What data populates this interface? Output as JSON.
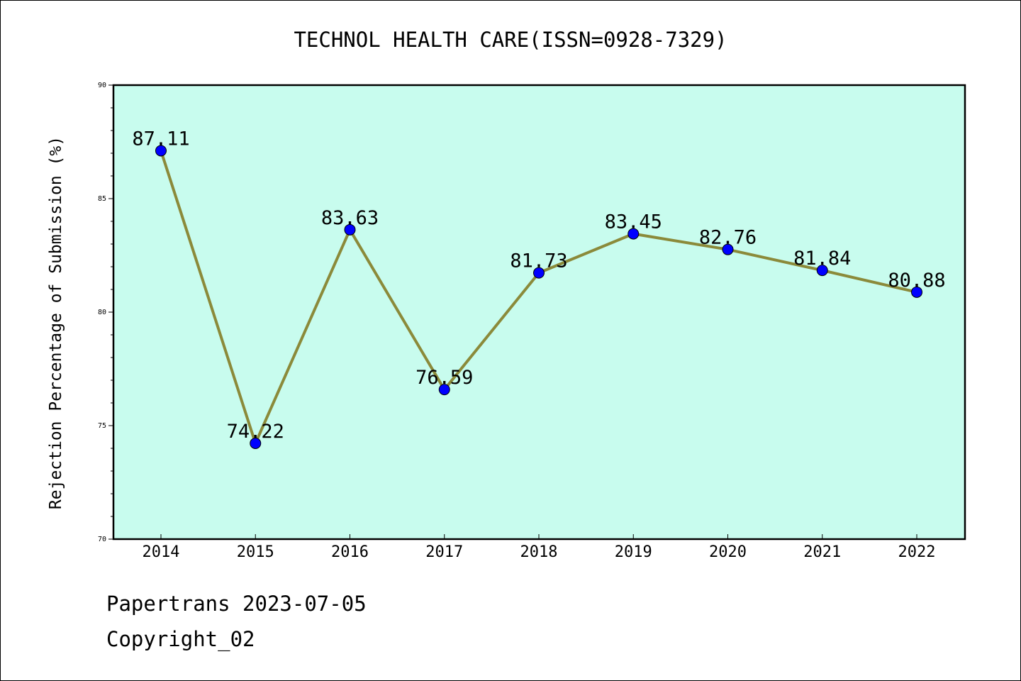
{
  "chart_data": {
    "type": "line",
    "title": "TECHNOL HEALTH CARE(ISSN=0928-7329)",
    "xlabel": "",
    "ylabel": "Rejection Percentage of Submission (%)",
    "categories": [
      "2014",
      "2015",
      "2016",
      "2017",
      "2018",
      "2019",
      "2020",
      "2021",
      "2022"
    ],
    "series": [
      {
        "values": [
          87.11,
          74.22,
          83.63,
          76.59,
          81.73,
          83.45,
          82.76,
          81.84,
          80.88
        ]
      }
    ],
    "data_labels": [
      "87.11",
      "74.22",
      "83.63",
      "76.59",
      "81.73",
      "83.45",
      "82.76",
      "81.84",
      "80.88"
    ],
    "ylim": [
      70,
      90
    ],
    "y_ticks": [
      "70",
      "75",
      "80",
      "85",
      "90"
    ],
    "grid": false,
    "legend": "none",
    "colors": {
      "plot_background": "#c8fcee",
      "line": "#8b8a3a",
      "marker": "#0000ff"
    }
  },
  "footer": {
    "line1": "Papertrans 2023-07-05",
    "line2": "Copyright_02"
  }
}
